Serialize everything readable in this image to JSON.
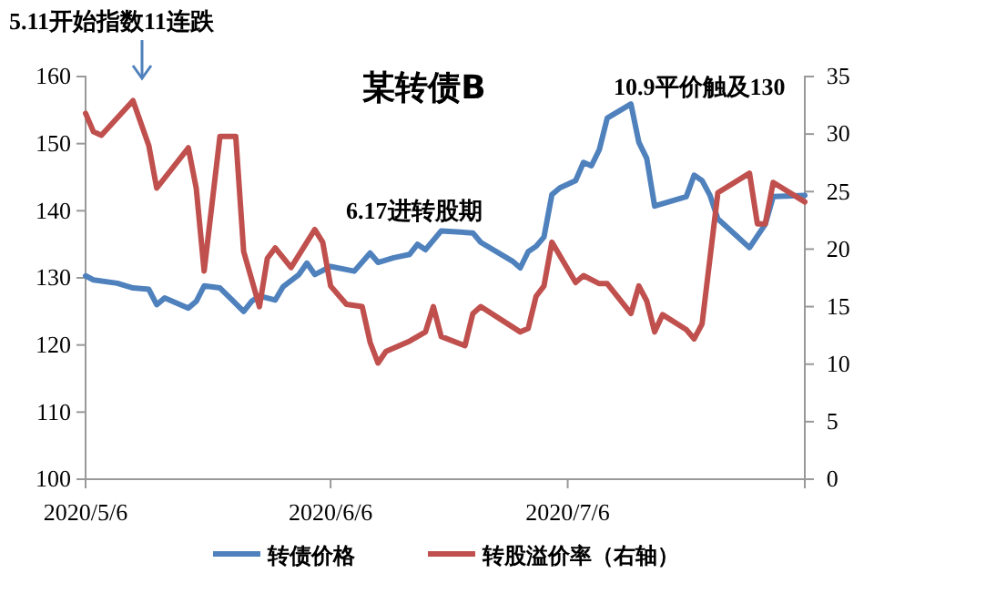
{
  "chart_data": {
    "type": "line",
    "title": "某转债B",
    "annotations": [
      "5.11开始指数11连跌",
      "6.17进转股期",
      "10.9平价触及130"
    ],
    "xlim": [
      "2020-05-06",
      "2020-08-05"
    ],
    "xticks": [
      {
        "value": "2020-05-06",
        "label": "2020/5/6"
      },
      {
        "value": "2020-06-06",
        "label": "2020/6/6"
      },
      {
        "value": "2020-07-06",
        "label": "2020/7/6"
      }
    ],
    "ylim": [
      100,
      160
    ],
    "yticks": [
      100,
      110,
      120,
      130,
      140,
      150,
      160
    ],
    "y2lim": [
      0,
      35
    ],
    "y2ticks": [
      0,
      5,
      10,
      15,
      20,
      25,
      30,
      35
    ],
    "legend": "bottom",
    "series": [
      {
        "name": "转债价格",
        "color": "#4f81bd",
        "x": [
          "2020-05-06",
          "2020-05-07",
          "2020-05-10",
          "2020-05-12",
          "2020-05-14",
          "2020-05-15",
          "2020-05-16",
          "2020-05-19",
          "2020-05-20",
          "2020-05-21",
          "2020-05-23",
          "2020-05-26",
          "2020-05-27",
          "2020-05-28",
          "2020-05-30",
          "2020-05-31",
          "2020-06-02",
          "2020-06-03",
          "2020-06-04",
          "2020-06-06",
          "2020-06-09",
          "2020-06-11",
          "2020-06-12",
          "2020-06-14",
          "2020-06-16",
          "2020-06-17",
          "2020-06-18",
          "2020-06-20",
          "2020-06-24",
          "2020-06-25",
          "2020-06-29",
          "2020-06-30",
          "2020-07-01",
          "2020-07-02",
          "2020-07-03",
          "2020-07-04",
          "2020-07-05",
          "2020-07-07",
          "2020-07-08",
          "2020-07-09",
          "2020-07-10",
          "2020-07-11",
          "2020-07-14",
          "2020-07-15",
          "2020-07-16",
          "2020-07-17",
          "2020-07-21",
          "2020-07-22",
          "2020-07-23",
          "2020-07-24",
          "2020-07-25",
          "2020-07-29",
          "2020-07-31",
          "2020-08-01",
          "2020-08-05"
        ],
        "values": [
          130.3,
          129.7,
          129.2,
          128.5,
          128.3,
          126,
          127,
          125.5,
          126.5,
          128.8,
          128.5,
          125,
          126.5,
          127.3,
          126.7,
          128.7,
          130.5,
          132.2,
          130.5,
          131.7,
          131,
          133.7,
          132.3,
          133,
          133.5,
          135,
          134.2,
          137,
          136.7,
          135.3,
          132.5,
          131.5,
          133.9,
          134.7,
          136.1,
          142.4,
          143.4,
          144.5,
          147.2,
          146.7,
          149.1,
          153.8,
          155.9,
          150.2,
          147.8,
          140.7,
          142.1,
          145.3,
          144.5,
          142.3,
          138.8,
          134.5,
          138,
          142.1,
          142.3
        ]
      },
      {
        "name": "转股溢价率（右轴）",
        "color": "#c0504d",
        "axis": "y2",
        "x": [
          "2020-05-06",
          "2020-05-07",
          "2020-05-08",
          "2020-05-12",
          "2020-05-14",
          "2020-05-15",
          "2020-05-19",
          "2020-05-20",
          "2020-05-21",
          "2020-05-23",
          "2020-05-25",
          "2020-05-26",
          "2020-05-28",
          "2020-05-29",
          "2020-05-30",
          "2020-06-01",
          "2020-06-03",
          "2020-06-04",
          "2020-06-05",
          "2020-06-06",
          "2020-06-08",
          "2020-06-10",
          "2020-06-11",
          "2020-06-12",
          "2020-06-13",
          "2020-06-16",
          "2020-06-18",
          "2020-06-19",
          "2020-06-20",
          "2020-06-23",
          "2020-06-24",
          "2020-06-25",
          "2020-06-30",
          "2020-07-01",
          "2020-07-02",
          "2020-07-03",
          "2020-07-04",
          "2020-07-07",
          "2020-07-08",
          "2020-07-10",
          "2020-07-11",
          "2020-07-14",
          "2020-07-15",
          "2020-07-16",
          "2020-07-17",
          "2020-07-18",
          "2020-07-21",
          "2020-07-22",
          "2020-07-23",
          "2020-07-25",
          "2020-07-29",
          "2020-07-30",
          "2020-07-31",
          "2020-08-01",
          "2020-08-05"
        ],
        "values": [
          31.8,
          30.2,
          29.9,
          32.9,
          29,
          25.3,
          28.8,
          25.3,
          18.1,
          29.8,
          29.8,
          19.8,
          15,
          19.2,
          20.1,
          18.4,
          20.6,
          21.7,
          20.6,
          16.8,
          15.2,
          15,
          11.9,
          10.1,
          11.1,
          12,
          12.8,
          15,
          12.4,
          11.6,
          14.4,
          15,
          12.8,
          13.1,
          15.9,
          16.8,
          20.6,
          17.1,
          17.7,
          17,
          17,
          14.4,
          16.8,
          15.5,
          12.8,
          14.3,
          13,
          12.2,
          13.5,
          24.9,
          26.6,
          22.2,
          22.2,
          25.8,
          24.1
        ]
      }
    ]
  }
}
